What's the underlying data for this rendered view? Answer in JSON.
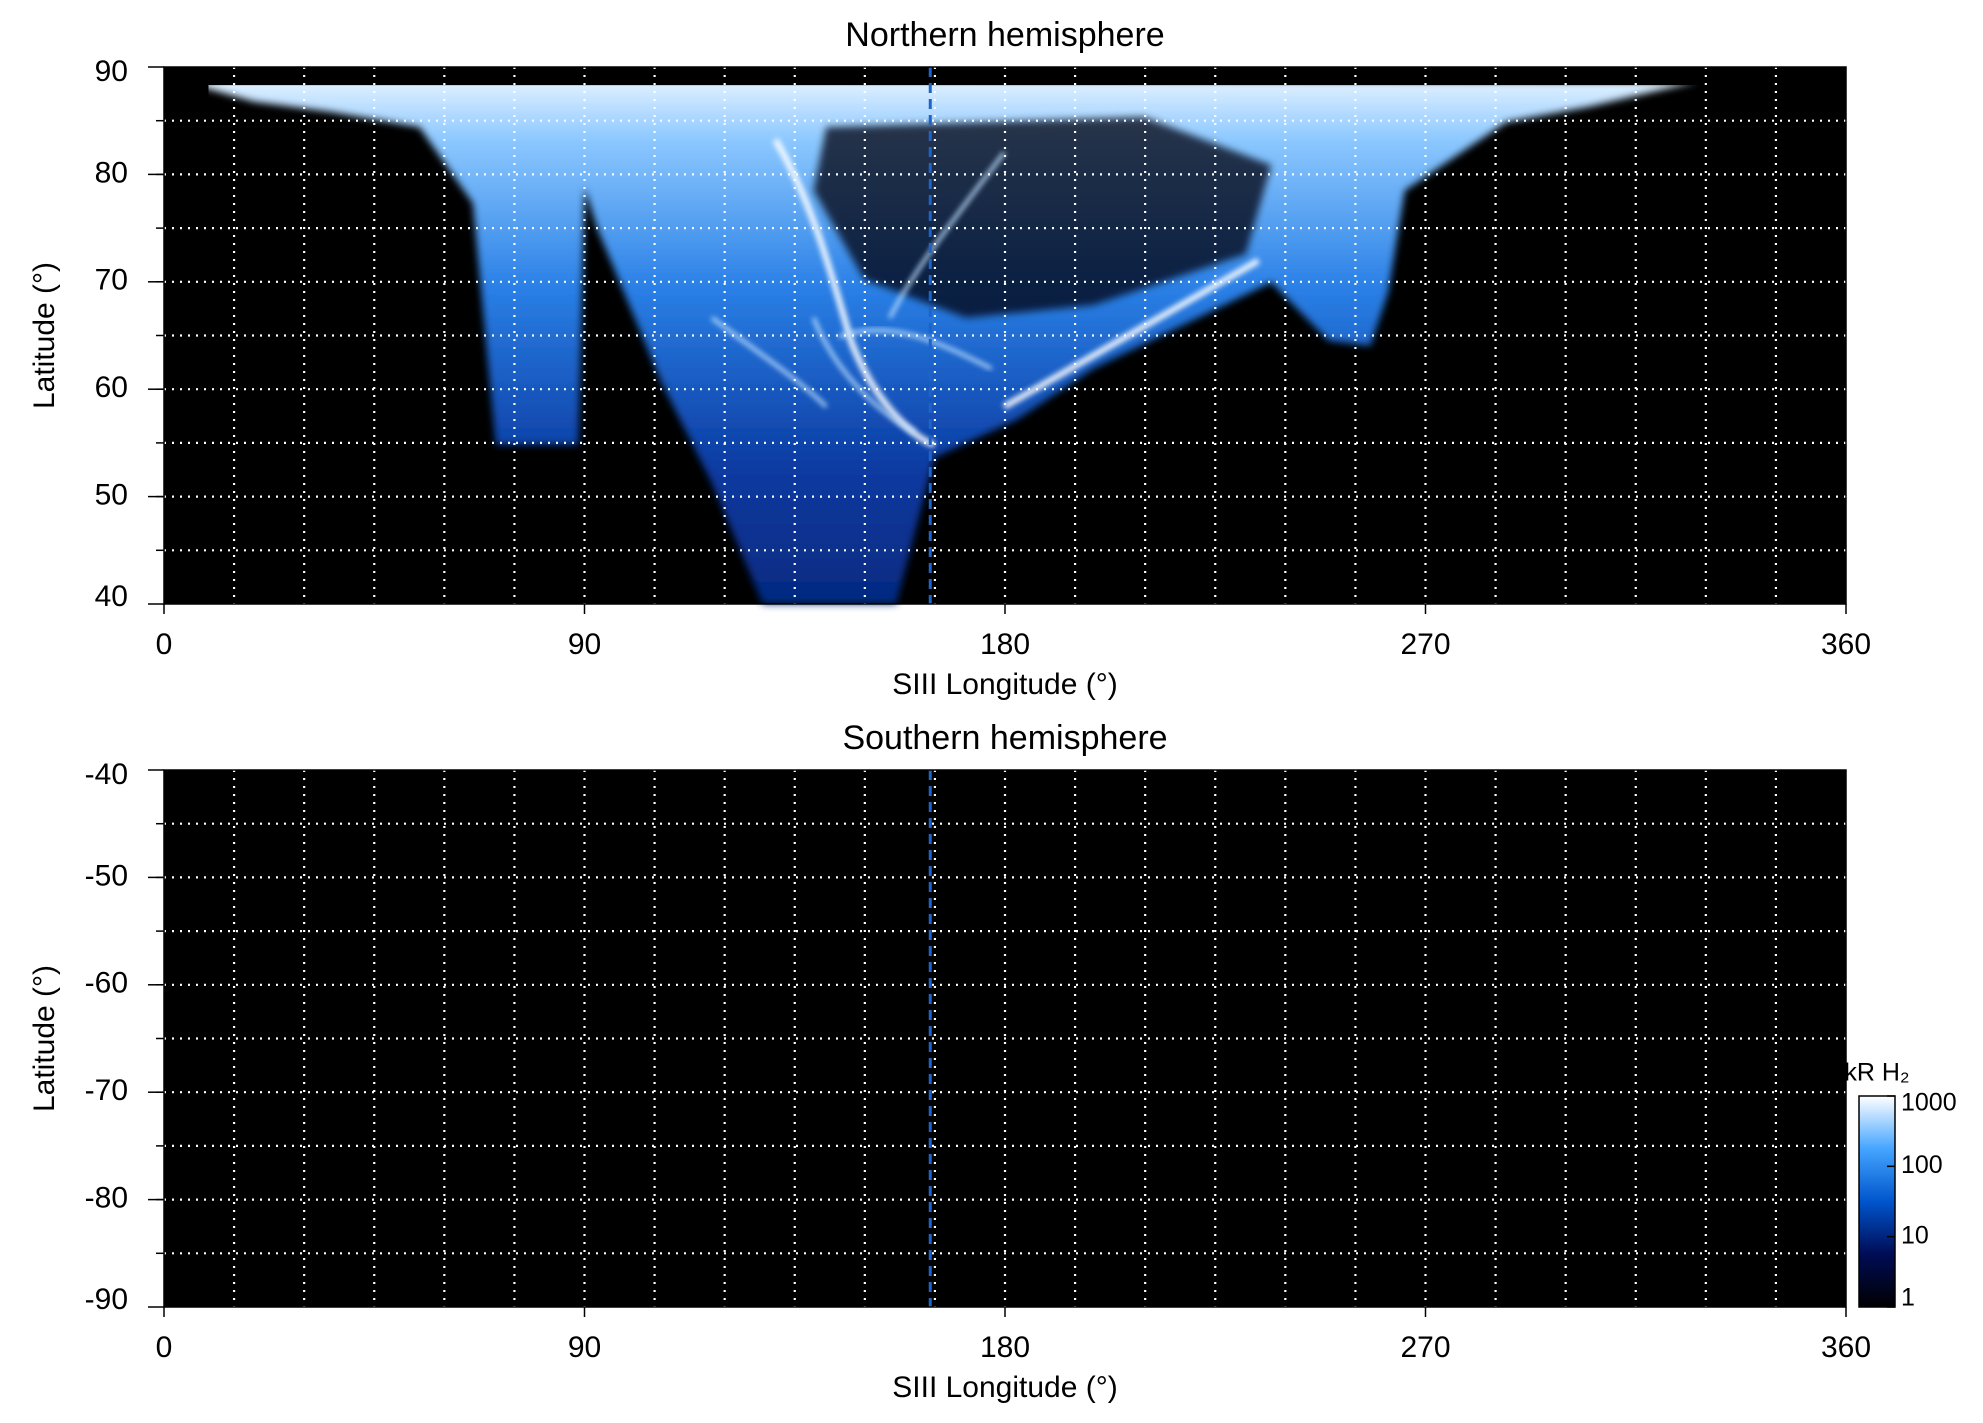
{
  "chart_data": [
    {
      "type": "heatmap",
      "title": "Northern hemisphere",
      "xlabel": "SIII Longitude (°)",
      "ylabel": "Latitude (°)",
      "xlim": [
        0,
        360
      ],
      "ylim": [
        40,
        90
      ],
      "xticks": [
        0,
        90,
        180,
        270,
        360
      ],
      "yticks": [
        40,
        50,
        60,
        70,
        80,
        90
      ],
      "xgrid": [
        15,
        30,
        45,
        60,
        75,
        90,
        105,
        120,
        135,
        150,
        165,
        180,
        195,
        210,
        225,
        240,
        255,
        270,
        285,
        300,
        315,
        330,
        345
      ],
      "ygrid": [
        45,
        50,
        55,
        60,
        65,
        70,
        75,
        80,
        85
      ],
      "reference_longitude": 164,
      "reference_color": "#1e64c8",
      "background": "#000000"
    },
    {
      "type": "heatmap",
      "title": "Southern hemisphere",
      "xlabel": "SIII Longitude (°)",
      "ylabel": "Latitude (°)",
      "xlim": [
        0,
        360
      ],
      "ylim": [
        -90,
        -40
      ],
      "xticks": [
        0,
        90,
        180,
        270,
        360
      ],
      "yticks": [
        -90,
        -80,
        -70,
        -60,
        -50,
        -40
      ],
      "xgrid": [
        15,
        30,
        45,
        60,
        75,
        90,
        105,
        120,
        135,
        150,
        165,
        180,
        195,
        210,
        225,
        240,
        255,
        270,
        285,
        300,
        315,
        330,
        345
      ],
      "ygrid": [
        -85,
        -80,
        -75,
        -70,
        -65,
        -60,
        -55,
        -50,
        -45
      ],
      "reference_longitude": 164,
      "reference_color": "#1e64c8",
      "background": "#000000"
    }
  ],
  "colorbar": {
    "label": "kR H₂",
    "log": true,
    "lim": [
      1,
      1000
    ],
    "ticks": [
      1,
      10,
      100,
      1000
    ],
    "colors": [
      "#000000",
      "#000c55",
      "#0055cc",
      "#45a5ff",
      "#ffffff"
    ]
  }
}
